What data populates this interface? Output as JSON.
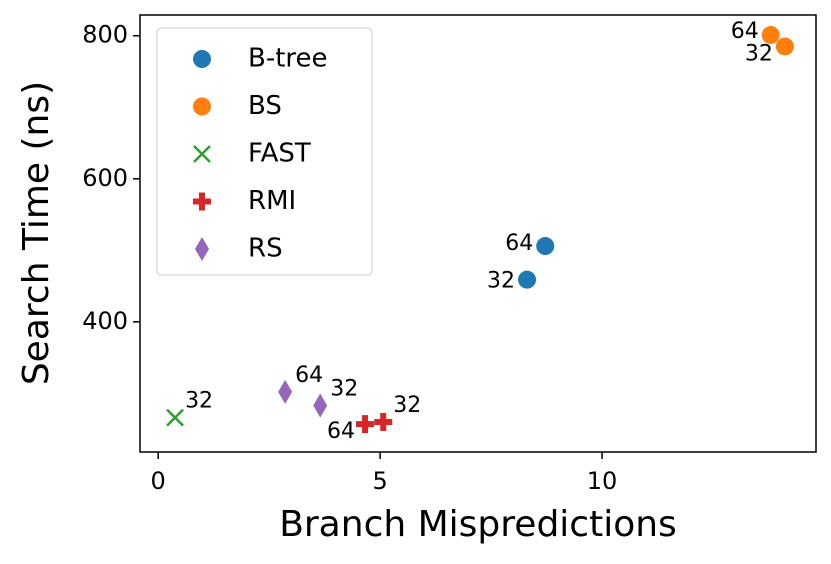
{
  "chart_data": {
    "type": "scatter",
    "xlabel": "Branch Mispredictions",
    "ylabel": "Search Time (ns)",
    "xlim": [
      -0.41,
      14.82
    ],
    "ylim": [
      218,
      829
    ],
    "xticks": [
      0,
      5,
      10
    ],
    "yticks": [
      400,
      600,
      800
    ],
    "legend": "upper left",
    "series": [
      {
        "name": "B-tree",
        "color": "#1f77b4",
        "marker": "circle",
        "x": [
          8.72,
          8.31
        ],
        "values": [
          506,
          459
        ],
        "labels": [
          "64",
          "32"
        ]
      },
      {
        "name": "BS",
        "color": "#ff7f0e",
        "marker": "circle",
        "x": [
          13.8,
          14.12
        ],
        "values": [
          801,
          785
        ],
        "labels": [
          "64",
          "32"
        ]
      },
      {
        "name": "FAST",
        "color": "#2ca02c",
        "marker": "x",
        "x": [
          0.38
        ],
        "values": [
          266
        ],
        "labels": [
          "32"
        ]
      },
      {
        "name": "RMI",
        "color": "#d62728",
        "marker": "plus",
        "x": [
          4.66,
          5.07
        ],
        "values": [
          257,
          260
        ],
        "labels": [
          "64",
          "32"
        ]
      },
      {
        "name": "RS",
        "color": "#9467bd",
        "marker": "diamond",
        "x": [
          2.86,
          3.65
        ],
        "values": [
          302,
          283
        ],
        "labels": [
          "64",
          "32"
        ]
      }
    ]
  }
}
